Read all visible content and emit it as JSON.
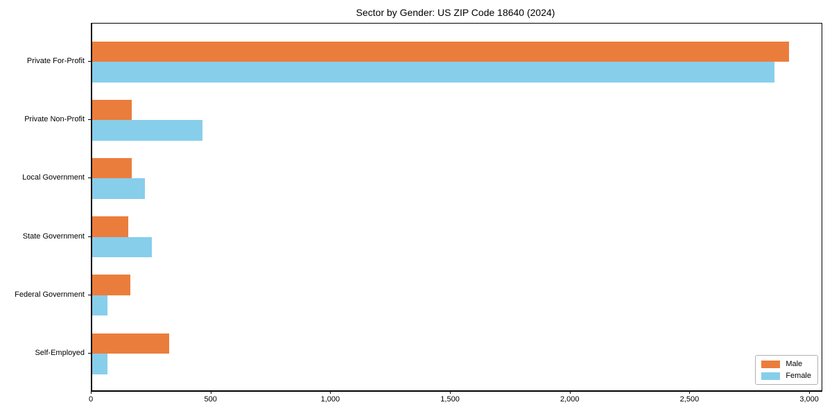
{
  "figure": {
    "background": "#ffffff"
  },
  "chart_data": {
    "type": "bar",
    "orientation": "horizontal",
    "title": "Sector by Gender: US ZIP Code 18640 (2024)",
    "categories": [
      "Private For-Profit",
      "Private Non-Profit",
      "Local Government",
      "State Government",
      "Federal Government",
      "Self-Employed"
    ],
    "series": [
      {
        "name": "Male",
        "color": "#EB7D3C",
        "values": [
          2910,
          165,
          165,
          150,
          160,
          320
        ]
      },
      {
        "name": "Female",
        "color": "#87CEEB",
        "values": [
          2850,
          460,
          220,
          250,
          65,
          65
        ]
      }
    ],
    "xlabel": "",
    "ylabel": "",
    "xlim": [
      0,
      3046
    ],
    "xticks": [
      0,
      500,
      1000,
      1500,
      2000,
      2500,
      3000
    ],
    "xtick_labels": [
      "0",
      "500",
      "1,000",
      "1,500",
      "2,000",
      "2,500",
      "3,000"
    ],
    "grid": false,
    "legend": {
      "position": "lower right",
      "entries": [
        "Male",
        "Female"
      ]
    }
  }
}
